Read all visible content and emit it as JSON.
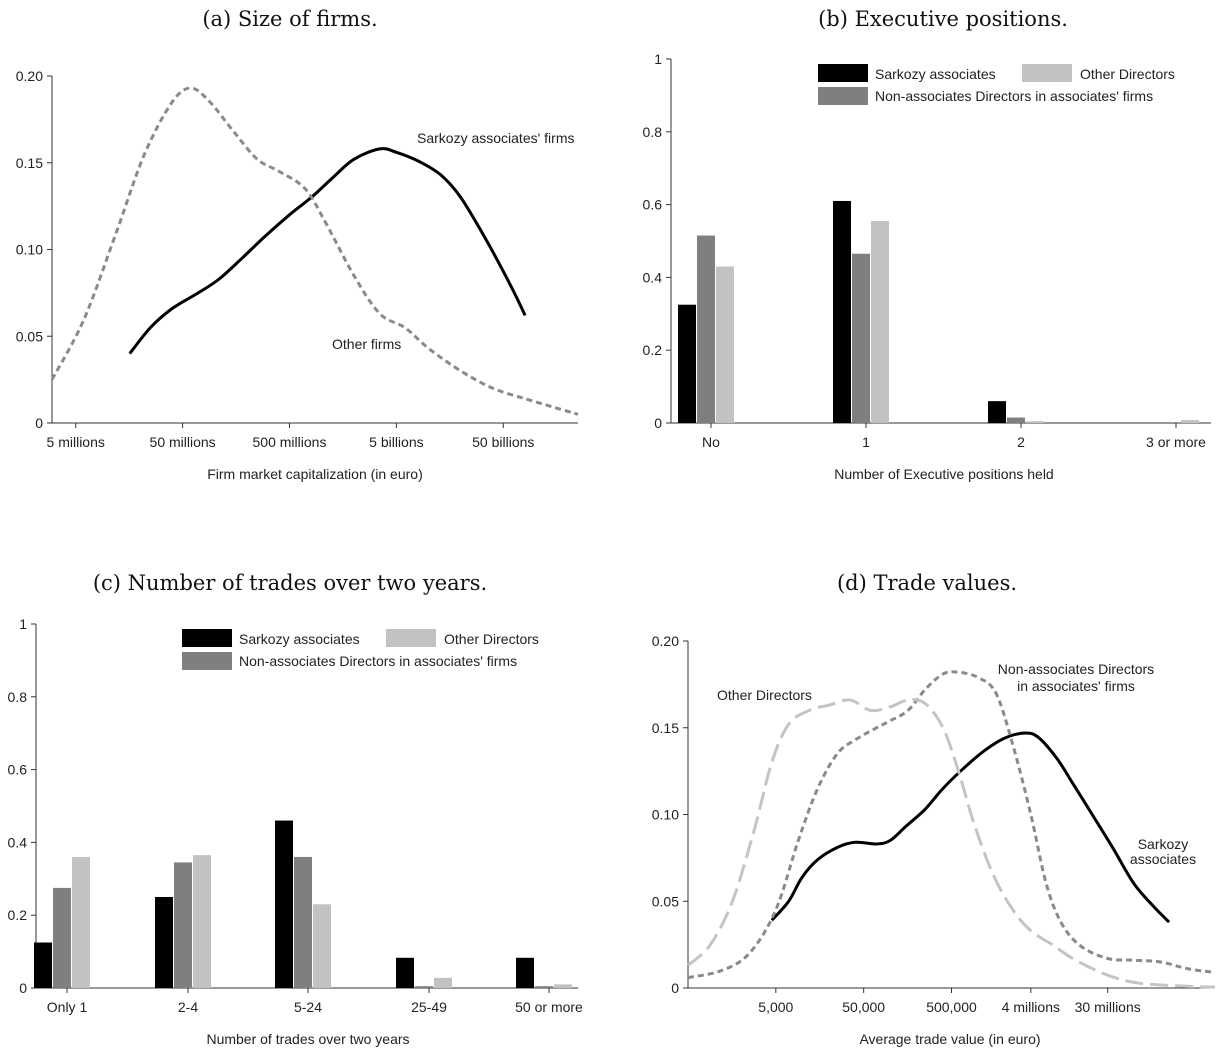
{
  "chart_data": [
    {
      "id": "a",
      "type": "line",
      "title": "(a) Size of firms.",
      "xlabel": "Firm market capitalization (in euro)",
      "ylabel": "",
      "x_scale": "log10",
      "xlim": [
        3000000,
        250000000000
      ],
      "ylim": [
        0,
        0.2
      ],
      "xticks": [
        5000000,
        50000000,
        500000000,
        5000000000,
        50000000000
      ],
      "xtick_labels": [
        "5 millions",
        "50 millions",
        "500 millions",
        "5 billions",
        "50 billions"
      ],
      "yticks": [
        0,
        0.05,
        0.1,
        0.15,
        0.2
      ],
      "ytick_labels": [
        "0",
        "0.05",
        "0.10",
        "0.15",
        "0.20"
      ],
      "grid": false,
      "series": [
        {
          "name": "Sarkozy associates' firms",
          "color": "#000000",
          "dash": "solid",
          "points": [
            [
              16000000,
              0.04
            ],
            [
              25000000,
              0.055
            ],
            [
              40000000,
              0.066
            ],
            [
              70000000,
              0.075
            ],
            [
              110000000,
              0.083
            ],
            [
              180000000,
              0.095
            ],
            [
              300000000,
              0.108
            ],
            [
              500000000,
              0.12
            ],
            [
              800000000,
              0.13
            ],
            [
              1300000000,
              0.142
            ],
            [
              2000000000,
              0.152
            ],
            [
              3500000000,
              0.158
            ],
            [
              5000000000,
              0.156
            ],
            [
              8000000000,
              0.151
            ],
            [
              13000000000,
              0.143
            ],
            [
              20000000000,
              0.13
            ],
            [
              35000000000,
              0.105
            ],
            [
              60000000000,
              0.078
            ],
            [
              80000000000,
              0.062
            ]
          ]
        },
        {
          "name": "Other firms",
          "color": "#8a8a8a",
          "dash": "dashed",
          "points": [
            [
              3000000,
              0.025
            ],
            [
              6000000,
              0.06
            ],
            [
              12000000,
              0.11
            ],
            [
              22000000,
              0.155
            ],
            [
              40000000,
              0.185
            ],
            [
              60000000,
              0.193
            ],
            [
              90000000,
              0.185
            ],
            [
              150000000,
              0.168
            ],
            [
              250000000,
              0.152
            ],
            [
              400000000,
              0.145
            ],
            [
              700000000,
              0.135
            ],
            [
              1100000000,
              0.115
            ],
            [
              2000000000,
              0.085
            ],
            [
              3500000000,
              0.063
            ],
            [
              6000000000,
              0.055
            ],
            [
              10000000000,
              0.043
            ],
            [
              20000000000,
              0.03
            ],
            [
              40000000000,
              0.02
            ],
            [
              80000000000,
              0.014
            ],
            [
              150000000000,
              0.009
            ],
            [
              250000000000,
              0.005
            ]
          ]
        }
      ],
      "annotations": [
        {
          "text": "Sarkozy associates' firms",
          "series": 0
        },
        {
          "text": "Other firms",
          "series": 1
        }
      ]
    },
    {
      "id": "b",
      "type": "bar",
      "title": "(b) Executive positions.",
      "xlabel": "Number of Executive positions held",
      "ylabel": "",
      "ylim": [
        0,
        1
      ],
      "yticks": [
        0,
        0.2,
        0.4,
        0.6,
        0.8,
        1
      ],
      "ytick_labels": [
        "0",
        "0.2",
        "0.4",
        "0.6",
        "0.8",
        "1"
      ],
      "grid": false,
      "legend": "top-right",
      "categories": [
        "No",
        "1",
        "2",
        "3 or more"
      ],
      "series": [
        {
          "name": "Sarkozy associates",
          "color": "#000000",
          "values": [
            0.325,
            0.61,
            0.06,
            0.0
          ]
        },
        {
          "name": "Non-associates Directors in associates' firms",
          "color": "#7f7f7f",
          "values": [
            0.515,
            0.465,
            0.015,
            0.0
          ]
        },
        {
          "name": "Other Directors",
          "color": "#c2c2c2",
          "values": [
            0.43,
            0.555,
            0.005,
            0.008
          ]
        }
      ]
    },
    {
      "id": "c",
      "type": "bar",
      "title": "(c) Number of trades over two years.",
      "xlabel": "Number of trades over two years",
      "ylabel": "",
      "ylim": [
        0,
        1
      ],
      "yticks": [
        0,
        0.2,
        0.4,
        0.6,
        0.8,
        1
      ],
      "ytick_labels": [
        "0",
        "0.2",
        "0.4",
        "0.6",
        "0.8",
        "1"
      ],
      "grid": false,
      "legend": "top-right",
      "categories": [
        "Only 1",
        "2-4",
        "5-24",
        "25-49",
        "50 or more"
      ],
      "series": [
        {
          "name": "Sarkozy associates",
          "color": "#000000",
          "values": [
            0.125,
            0.25,
            0.46,
            0.083,
            0.083
          ]
        },
        {
          "name": "Non-associates Directors in associates' firms",
          "color": "#7f7f7f",
          "values": [
            0.275,
            0.345,
            0.36,
            0.005,
            0.005
          ]
        },
        {
          "name": "Other Directors",
          "color": "#c2c2c2",
          "values": [
            0.36,
            0.365,
            0.23,
            0.028,
            0.01
          ]
        }
      ]
    },
    {
      "id": "d",
      "type": "line",
      "title": "(d) Trade values.",
      "xlabel": "Average trade value (in euro)",
      "ylabel": "",
      "x_scale": "log10",
      "xlim": [
        500,
        500000000
      ],
      "ylim": [
        0,
        0.2
      ],
      "xticks": [
        5000,
        50000,
        500000,
        4000000,
        30000000
      ],
      "xtick_labels": [
        "5,000",
        "50,000",
        "500,000",
        "4 millions",
        "30 millions"
      ],
      "yticks": [
        0,
        0.05,
        0.1,
        0.15,
        0.2
      ],
      "ytick_labels": [
        "0",
        "0.05",
        "0.10",
        "0.15",
        "0.20"
      ],
      "grid": false,
      "series": [
        {
          "name": "Sarkozy associates",
          "color": "#000000",
          "dash": "solid",
          "points": [
            [
              4500,
              0.039
            ],
            [
              7000,
              0.05
            ],
            [
              10000,
              0.064
            ],
            [
              15000,
              0.074
            ],
            [
              25000,
              0.081
            ],
            [
              40000,
              0.084
            ],
            [
              70000,
              0.083
            ],
            [
              100000,
              0.085
            ],
            [
              150000,
              0.093
            ],
            [
              250000,
              0.103
            ],
            [
              400000,
              0.115
            ],
            [
              700000,
              0.127
            ],
            [
              1200000,
              0.137
            ],
            [
              2000000,
              0.144
            ],
            [
              3500000,
              0.147
            ],
            [
              5000000,
              0.144
            ],
            [
              8000000,
              0.132
            ],
            [
              12000000,
              0.118
            ],
            [
              20000000,
              0.1
            ],
            [
              35000000,
              0.08
            ],
            [
              60000000,
              0.06
            ],
            [
              100000000,
              0.047
            ],
            [
              150000000,
              0.038
            ]
          ]
        },
        {
          "name": "Non-associates Directors in associates' firms",
          "color": "#8a8a8a",
          "dash": "dashed",
          "points": [
            [
              500,
              0.006
            ],
            [
              1200,
              0.01
            ],
            [
              2500,
              0.02
            ],
            [
              5000,
              0.045
            ],
            [
              9000,
              0.085
            ],
            [
              15000,
              0.115
            ],
            [
              25000,
              0.135
            ],
            [
              40000,
              0.143
            ],
            [
              70000,
              0.15
            ],
            [
              100000,
              0.154
            ],
            [
              160000,
              0.16
            ],
            [
              250000,
              0.172
            ],
            [
              400000,
              0.181
            ],
            [
              600000,
              0.182
            ],
            [
              1000000,
              0.179
            ],
            [
              1600000,
              0.17
            ],
            [
              2500000,
              0.14
            ],
            [
              4000000,
              0.1
            ],
            [
              6000000,
              0.06
            ],
            [
              9000000,
              0.037
            ],
            [
              15000000,
              0.024
            ],
            [
              30000000,
              0.017
            ],
            [
              60000000,
              0.016
            ],
            [
              120000000,
              0.015
            ],
            [
              250000000,
              0.011
            ],
            [
              500000000,
              0.009
            ]
          ]
        },
        {
          "name": "Other Directors",
          "color": "#c4c4c4",
          "dash": "longdash",
          "points": [
            [
              500,
              0.013
            ],
            [
              900,
              0.025
            ],
            [
              1600,
              0.05
            ],
            [
              2800,
              0.09
            ],
            [
              4500,
              0.13
            ],
            [
              7000,
              0.152
            ],
            [
              12000,
              0.16
            ],
            [
              20000,
              0.163
            ],
            [
              35000,
              0.166
            ],
            [
              60000,
              0.16
            ],
            [
              100000,
              0.162
            ],
            [
              160000,
              0.166
            ],
            [
              250000,
              0.164
            ],
            [
              400000,
              0.15
            ],
            [
              600000,
              0.125
            ],
            [
              900000,
              0.095
            ],
            [
              1500000,
              0.065
            ],
            [
              2500000,
              0.045
            ],
            [
              4000000,
              0.033
            ],
            [
              7000000,
              0.025
            ],
            [
              12000000,
              0.017
            ],
            [
              25000000,
              0.009
            ],
            [
              50000000,
              0.004
            ],
            [
              100000000,
              0.002
            ],
            [
              250000000,
              0.001
            ],
            [
              500000000,
              0.0005
            ]
          ]
        }
      ],
      "annotations": [
        {
          "text": "Other Directors",
          "series": 2
        },
        {
          "text": "Non-associates Directors",
          "text2": "in associates' firms",
          "series": 1
        },
        {
          "text": "Sarkozy",
          "text2": "associates",
          "series": 0
        }
      ]
    }
  ]
}
